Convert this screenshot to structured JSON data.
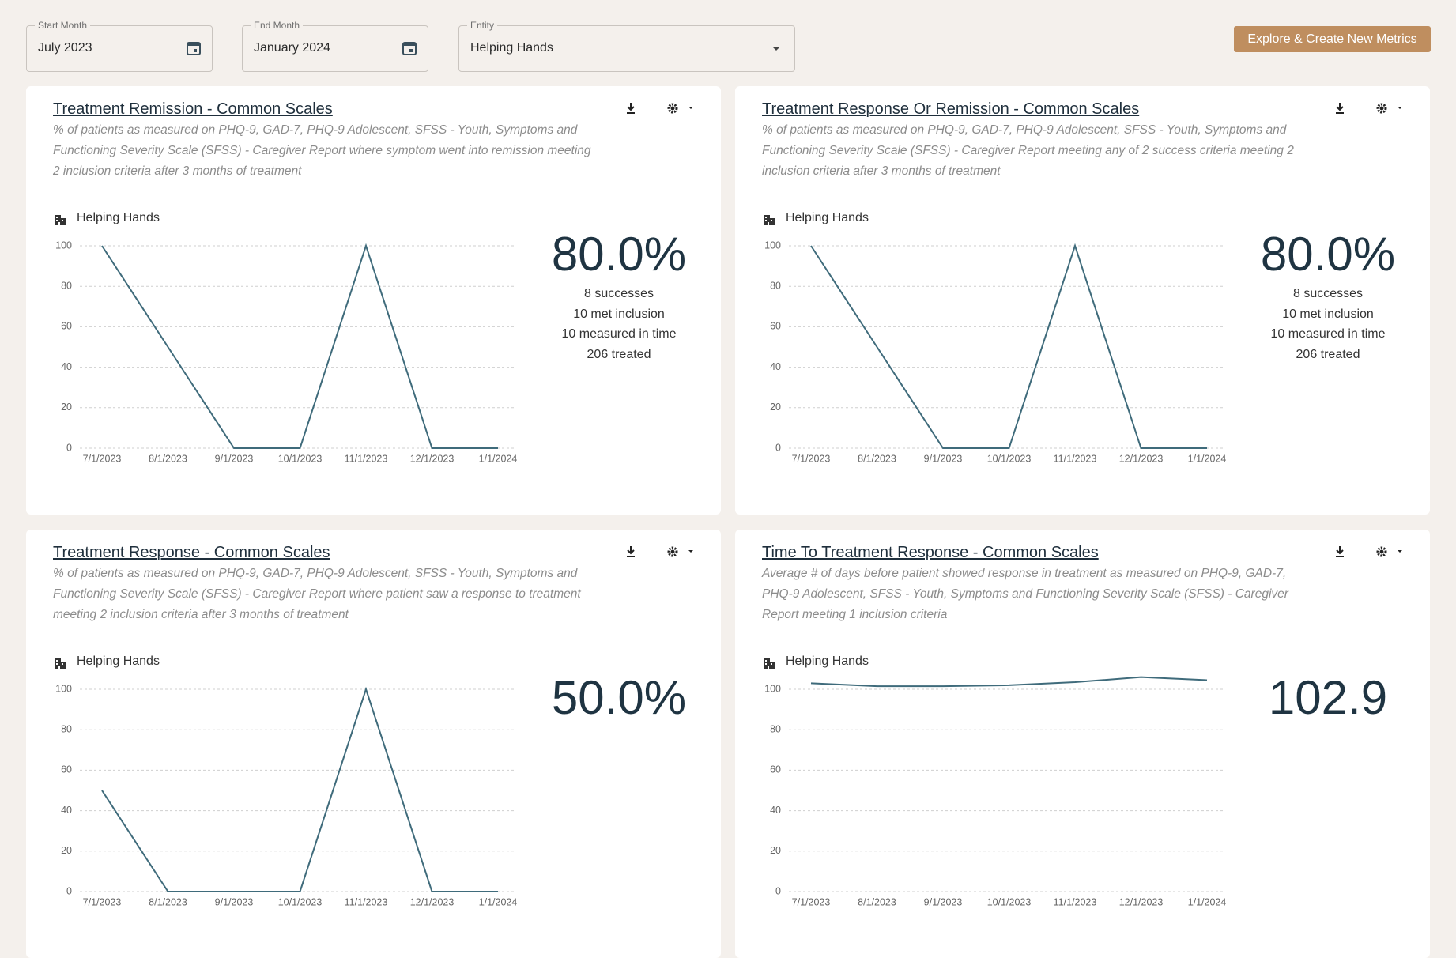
{
  "filters": [
    {
      "label": "Start Month",
      "value": "July 2023"
    },
    {
      "label": "End Month",
      "value": "January 2024"
    },
    {
      "label": "Entity",
      "value": "Helping Hands"
    }
  ],
  "button": "Explore & Create New Metrics",
  "cards": [
    {
      "title": "Treatment Remission - Common Scales",
      "description": [
        "% of patients as measured on PHQ-9, GAD-7, PHQ-9 Adolescent, SFSS - Youth, Symptoms and",
        "Functioning Severity Scale (SFSS) - Caregiver Report where symptom went into remission meeting",
        "2 inclusion criteria after 3 months of treatment"
      ],
      "entity": "Helping Hands",
      "chart": {
        "type": "line",
        "categories": [
          "7/1/2023",
          "8/1/2023",
          "9/1/2023",
          "10/1/2023",
          "11/1/2023",
          "12/1/2023",
          "1/1/2024"
        ],
        "values": [
          100,
          50,
          0,
          0,
          100,
          0,
          0
        ],
        "color": "#3f6b7b",
        "ylim": [
          0,
          100
        ],
        "yticks": [
          0,
          20,
          40,
          60,
          80,
          100
        ],
        "grid": true
      },
      "stat": "80.0%",
      "details": [
        "8 successes",
        "10 met inclusion",
        "10 measured in time",
        "206 treated"
      ]
    },
    {
      "title": "Treatment Response Or Remission - Common Scales",
      "description": [
        "% of patients as measured on PHQ-9, GAD-7, PHQ-9 Adolescent, SFSS - Youth, Symptoms and",
        "Functioning Severity Scale (SFSS) - Caregiver Report meeting any of 2 success criteria meeting 2",
        "inclusion criteria after 3 months of treatment"
      ],
      "entity": "Helping Hands",
      "chart": {
        "type": "line",
        "categories": [
          "7/1/2023",
          "8/1/2023",
          "9/1/2023",
          "10/1/2023",
          "11/1/2023",
          "12/1/2023",
          "1/1/2024"
        ],
        "values": [
          100,
          50,
          0,
          0,
          100,
          0,
          0
        ],
        "color": "#3f6b7b",
        "ylim": [
          0,
          100
        ],
        "yticks": [
          0,
          20,
          40,
          60,
          80,
          100
        ],
        "grid": true
      },
      "stat": "80.0%",
      "details": [
        "8 successes",
        "10 met inclusion",
        "10 measured in time",
        "206 treated"
      ]
    },
    {
      "title": "Treatment Response - Common Scales",
      "description": [
        "% of patients as measured on PHQ-9, GAD-7, PHQ-9 Adolescent, SFSS - Youth, Symptoms and",
        "Functioning Severity Scale (SFSS) - Caregiver Report where patient saw a response to treatment",
        "meeting 2 inclusion criteria after 3 months of treatment"
      ],
      "entity": "Helping Hands",
      "chart": {
        "type": "line",
        "categories": [
          "7/1/2023",
          "8/1/2023",
          "9/1/2023",
          "10/1/2023",
          "11/1/2023",
          "12/1/2023",
          "1/1/2024"
        ],
        "values": [
          50,
          0,
          0,
          0,
          100,
          0,
          0
        ],
        "color": "#3f6b7b",
        "ylim": [
          0,
          100
        ],
        "yticks": [
          0,
          20,
          40,
          60,
          80,
          100
        ],
        "grid": true
      },
      "stat": "50.0%",
      "details": []
    },
    {
      "title": "Time To Treatment Response - Common Scales",
      "description": [
        "Average # of days before patient showed response in treatment as measured on PHQ-9, GAD-7,",
        "PHQ-9 Adolescent, SFSS - Youth, Symptoms and Functioning Severity Scale (SFSS) - Caregiver",
        "Report meeting 1 inclusion criteria"
      ],
      "entity": "Helping Hands",
      "chart": {
        "type": "line",
        "categories": [
          "7/1/2023",
          "8/1/2023",
          "9/1/2023",
          "10/1/2023",
          "11/1/2023",
          "12/1/2023",
          "1/1/2024"
        ],
        "values": [
          103,
          101.5,
          101.5,
          102,
          103.5,
          106,
          104.5
        ],
        "color": "#3f6b7b",
        "ylim": [
          0,
          110
        ],
        "yticks": [
          0,
          20,
          40,
          60,
          80,
          100
        ],
        "grid": true
      },
      "stat": "102.9",
      "details": []
    }
  ]
}
